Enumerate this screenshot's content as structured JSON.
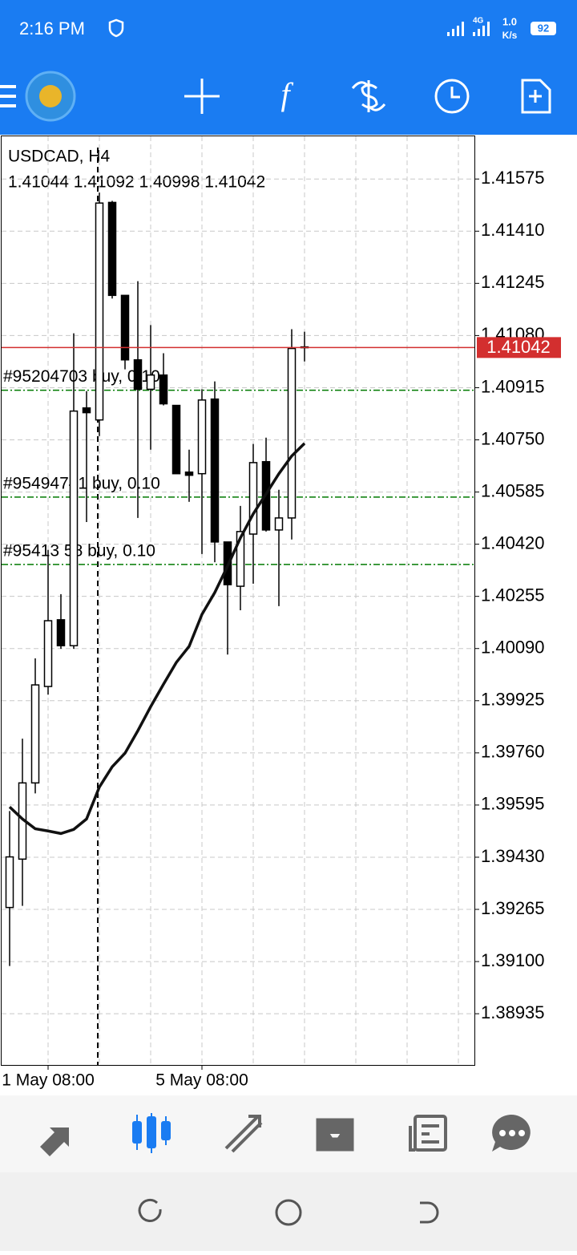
{
  "status_bar": {
    "time": "2:16 PM",
    "network": "4G",
    "speed": "1.0",
    "speed_unit": "K/s",
    "battery": "92"
  },
  "chart_data": {
    "type": "candlestick",
    "title": "USDCAD, H4",
    "ohlc_label": "1.41044 1.41092 1.40998 1.41042",
    "categories": [
      null,
      null,
      null,
      "1 May 08:00",
      null,
      null,
      null,
      null,
      null,
      null,
      null,
      null,
      null,
      null,
      null,
      "5 May 08:00",
      null,
      null,
      null,
      null,
      null,
      null,
      null,
      null
    ],
    "open": [
      1.39271,
      1.39424,
      1.39665,
      1.3997,
      1.40181,
      1.40099,
      1.40851,
      1.40813,
      1.41501,
      1.41207,
      1.41003,
      1.4091,
      1.40955,
      1.40859,
      1.40648,
      1.40643,
      1.40879,
      1.40427,
      1.40287,
      1.40452,
      1.40681,
      1.40465,
      1.40503,
      1.41044
    ],
    "high": [
      1.39576,
      1.39805,
      1.40059,
      1.40402,
      1.40262,
      1.41087,
      1.40904,
      1.41532,
      1.41506,
      1.41207,
      1.41252,
      1.41113,
      1.41024,
      1.40859,
      1.40719,
      1.4091,
      1.40935,
      1.40427,
      1.40541,
      1.40737,
      1.40757,
      1.40592,
      1.411,
      1.41092
    ],
    "low": [
      1.39086,
      1.39276,
      1.39632,
      1.39944,
      1.40089,
      1.40089,
      1.4049,
      1.40762,
      1.41197,
      1.40973,
      1.40503,
      1.40719,
      1.40859,
      1.40643,
      1.40554,
      1.40389,
      1.40363,
      1.40071,
      1.40211,
      1.40295,
      1.4046,
      1.40224,
      1.40435,
      1.40998
    ],
    "close": [
      1.39431,
      1.39665,
      1.39975,
      1.40178,
      1.40099,
      1.40841,
      1.40836,
      1.41499,
      1.41207,
      1.41003,
      1.4091,
      1.40955,
      1.40864,
      1.40643,
      1.40638,
      1.40876,
      1.40427,
      1.40292,
      1.4046,
      1.40678,
      1.40465,
      1.40503,
      1.41039,
      1.41042
    ],
    "lines": [
      {
        "color": "#111111",
        "values": [
          1.39589,
          1.39551,
          1.3952,
          1.39513,
          1.39505,
          1.39518,
          1.39551,
          1.39652,
          1.39716,
          1.39759,
          1.3983,
          1.39906,
          1.39977,
          1.40046,
          1.40097,
          1.40198,
          1.40267,
          1.40351,
          1.4044,
          1.40516,
          1.40579,
          1.40643,
          1.40699,
          1.40739
        ]
      }
    ],
    "orders": [
      {
        "label": "#95204703 buy, 0.10",
        "price": 1.40907
      },
      {
        "label": "#95494741 buy, 0.10",
        "price": 1.40569
      },
      {
        "label": "#95413 58 buy, 0.10",
        "price": 1.40356
      }
    ],
    "order_color": "#007a00",
    "bid": 1.41042,
    "bid_label": "1.41042",
    "bid_color": "#d32f2f",
    "ylim": [
      1.38773,
      1.4171
    ],
    "yticks": [
      1.41575,
      {
        "value": 1.4141,
        "label": "1.41410"
      },
      1.41245,
      {
        "value": 1.4108,
        "label": "1.41080"
      },
      1.40915,
      {
        "value": 1.4075,
        "label": "1.40750"
      },
      1.40585,
      {
        "value": 1.4042,
        "label": "1.40420"
      },
      1.40255,
      {
        "value": 1.4009,
        "label": "1.40090"
      },
      1.39925,
      {
        "value": 1.3976,
        "label": "1.39760"
      },
      1.39595,
      {
        "value": 1.3943,
        "label": "1.39430"
      },
      1.39265,
      {
        "value": 1.391,
        "label": "1.39100"
      },
      1.38935
    ],
    "grid": true
  }
}
